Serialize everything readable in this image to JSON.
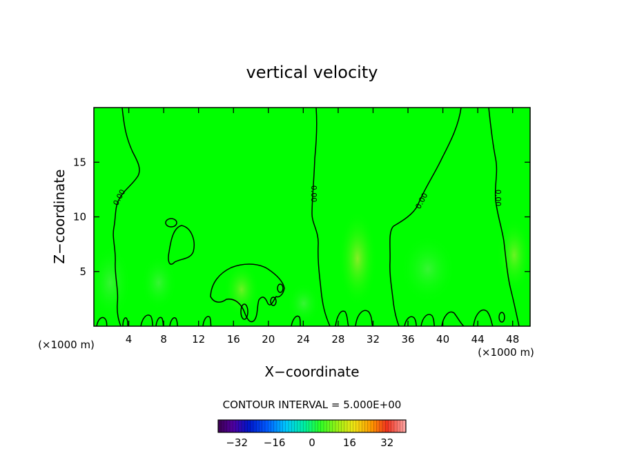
{
  "chart_data": {
    "type": "heatmap",
    "title": "vertical velocity",
    "xlabel": "X−coordinate",
    "ylabel": "Z−coordinate",
    "x_unit_left": "(×1000 m)",
    "x_unit_right": "(×1000 m)",
    "xlim": [
      0,
      50
    ],
    "ylim": [
      0,
      20
    ],
    "x_ticks": [
      4,
      8,
      12,
      16,
      20,
      24,
      28,
      32,
      36,
      40,
      44,
      48
    ],
    "y_ticks": [
      5,
      10,
      15
    ],
    "contour_interval_label": "CONTOUR INTERVAL = 5.000E+00",
    "contour_labels": [
      "0.00",
      "0.00",
      "0.00",
      "0.00"
    ],
    "colorbar": {
      "range": [
        -40,
        40
      ],
      "ticks": [
        "−32",
        "−16",
        "0",
        "16",
        "32"
      ],
      "tick_values": [
        -32,
        -16,
        0,
        16,
        32
      ]
    },
    "colors": {
      "field": "#00ff00",
      "field_light": "#3cf035",
      "field_yellowish": "#6cf020",
      "contour": "#000000"
    }
  }
}
